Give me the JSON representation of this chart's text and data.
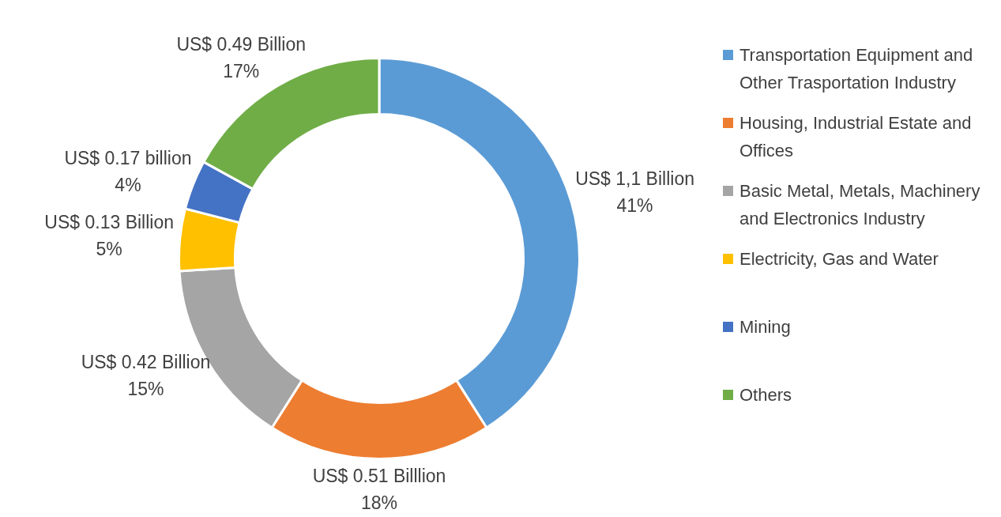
{
  "chart_data": {
    "type": "donut",
    "categories": [
      "Transportation Equipment and Other Trasportation Industry",
      "Housing, Industrial Estate and Offices",
      "Basic Metal, Metals, Machinery and Electronics Industry",
      "Electricity, Gas and Water",
      "Mining",
      "Others"
    ],
    "values": [
      41,
      18,
      15,
      5,
      4,
      17
    ],
    "colors": [
      "#5b9bd5",
      "#ed7d31",
      "#a5a5a5",
      "#ffc000",
      "#4472c4",
      "#70ad47"
    ],
    "value_labels": [
      "US$ 1,1 Billion\n41%",
      "US$ 0.51 Billlion\n18%",
      "US$ 0.42 Billion\n15%",
      "US$ 0.13 Billion\n5%",
      "US$ 0.17 billion\n4%",
      "US$ 0.49 Billion\n17%"
    ],
    "legend": "right"
  }
}
